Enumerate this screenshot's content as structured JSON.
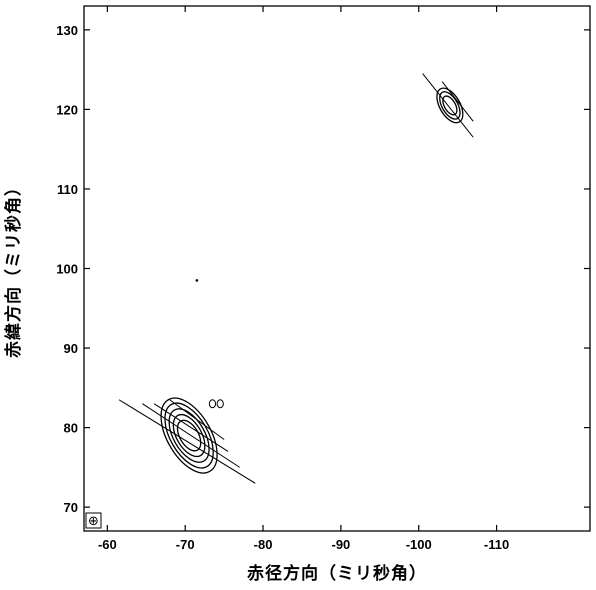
{
  "chart_data": {
    "type": "contour",
    "xlabel": "赤径方向（ミリ秒角）",
    "ylabel": "赤緯方向（ミリ秒角）",
    "x_ticks": [
      "-60",
      "-70",
      "-80",
      "-90",
      "-100",
      "-110"
    ],
    "y_ticks": [
      "70",
      "80",
      "90",
      "100",
      "110",
      "120",
      "130"
    ],
    "xlim": [
      -57,
      -122
    ],
    "ylim": [
      67,
      133
    ],
    "x_tick_values": [
      -60,
      -70,
      -80,
      -90,
      -100,
      -110
    ],
    "y_tick_values": [
      70,
      80,
      90,
      100,
      110,
      120,
      130
    ],
    "sources": [
      {
        "center": [
          -70.5,
          79
        ],
        "contours": [
          {
            "rx": 1.2,
            "ry": 2.1,
            "angle": -30
          },
          {
            "rx": 1.6,
            "ry": 2.9,
            "angle": -30
          },
          {
            "rx": 2.0,
            "ry": 3.7,
            "angle": -30
          },
          {
            "rx": 2.4,
            "ry": 4.5,
            "angle": -30
          },
          {
            "rx": 2.8,
            "ry": 5.2,
            "angle": -30
          }
        ],
        "tracks": [
          {
            "from": [
              -61.5,
              83.5
            ],
            "to": [
              -79,
              73
            ]
          },
          {
            "from": [
              -64.5,
              83
            ],
            "to": [
              -77,
              75
            ]
          },
          {
            "from": [
              -66,
              83
            ],
            "to": [
              -75.5,
              77
            ]
          },
          {
            "from": [
              -68,
              83.5
            ],
            "to": [
              -75,
              78.5
            ]
          }
        ],
        "minor_contours": [
          {
            "center": [
              -73.5,
              83
            ],
            "rx": 0.4,
            "ry": 0.5,
            "angle": 0
          },
          {
            "center": [
              -74.5,
              83
            ],
            "rx": 0.4,
            "ry": 0.5,
            "angle": 0
          }
        ]
      },
      {
        "center": [
          -104,
          120.5
        ],
        "contours": [
          {
            "rx": 0.7,
            "ry": 1.3,
            "angle": -30
          },
          {
            "rx": 1.0,
            "ry": 1.9,
            "angle": -30
          },
          {
            "rx": 1.3,
            "ry": 2.4,
            "angle": -30
          }
        ],
        "tracks": [
          {
            "from": [
              -100.5,
              124.5
            ],
            "to": [
              -107,
              116.5
            ]
          },
          {
            "from": [
              -103,
              123.5
            ],
            "to": [
              -107,
              118.5
            ]
          }
        ],
        "minor_contours": []
      }
    ],
    "points": [
      [
        -71.5,
        98.5
      ]
    ],
    "corner_symbol": "⊕"
  }
}
